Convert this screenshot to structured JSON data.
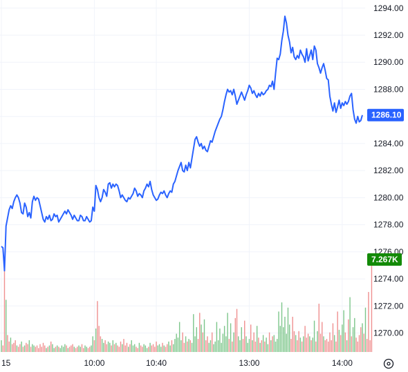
{
  "chart_data": {
    "type": "line",
    "instrument_chart": "intraday price line with volume histogram",
    "y_axis": {
      "side": "right",
      "ticks": [
        "1294.00",
        "1292.00",
        "1290.00",
        "1288.00",
        "1286.00",
        "1284.00",
        "1282.00",
        "1280.00",
        "1278.00",
        "1276.00",
        "1274.00",
        "1272.00",
        "1270.00"
      ],
      "tick_values": [
        1294,
        1292,
        1290,
        1288,
        1286,
        1284,
        1282,
        1280,
        1278,
        1276,
        1274,
        1272,
        1270
      ],
      "ylim": [
        1268.6,
        1294.6
      ]
    },
    "x_axis": {
      "ticks": [
        "15",
        "10:00",
        "10:40",
        "13:00",
        "14:00"
      ],
      "tick_positions": [
        0,
        60,
        100,
        160,
        220
      ]
    },
    "grid": true,
    "line_color": "#2962ff",
    "last_price": "1286.10",
    "last_price_color": "#2962ff",
    "volume_badge": "7.267K",
    "volume_badge_color": "#138a07",
    "volume_up_color": "#7cc58a",
    "volume_down_color": "#ef8f8f",
    "x": [
      0,
      1,
      2,
      3,
      4,
      5,
      6,
      7,
      8,
      9,
      10,
      11,
      12,
      13,
      14,
      15,
      16,
      17,
      18,
      19,
      20,
      21,
      22,
      23,
      24,
      25,
      26,
      27,
      28,
      29,
      30,
      31,
      32,
      33,
      34,
      35,
      36,
      37,
      38,
      39,
      40,
      41,
      42,
      43,
      44,
      45,
      46,
      47,
      48,
      49,
      50,
      51,
      52,
      53,
      54,
      55,
      56,
      57,
      58,
      59,
      60,
      61,
      62,
      63,
      64,
      65,
      66,
      67,
      68,
      69,
      70,
      71,
      72,
      73,
      74,
      75,
      76,
      77,
      78,
      79,
      80,
      81,
      82,
      83,
      84,
      85,
      86,
      87,
      88,
      89,
      90,
      91,
      92,
      93,
      94,
      95,
      96,
      97,
      98,
      99,
      100,
      101,
      102,
      103,
      104,
      105,
      106,
      107,
      108,
      109,
      110,
      111,
      112,
      113,
      114,
      115,
      116,
      117,
      118,
      119,
      120,
      121,
      122,
      123,
      124,
      125,
      126,
      127,
      128,
      129,
      130,
      131,
      132,
      133,
      134,
      135,
      136,
      137,
      138,
      139,
      140,
      141,
      142,
      143,
      144,
      145,
      146,
      147,
      148,
      149,
      150,
      151,
      152,
      153,
      154,
      155,
      156,
      157,
      158,
      159,
      160,
      161,
      162,
      163,
      164,
      165,
      166,
      167,
      168,
      169,
      170,
      171,
      172,
      173,
      174,
      175,
      176,
      177,
      178,
      179,
      180,
      181,
      182,
      183,
      184,
      185,
      186,
      187,
      188,
      189,
      190,
      191,
      192,
      193,
      194,
      195,
      196,
      197,
      198,
      199,
      200,
      201,
      202,
      203,
      204,
      205,
      206,
      207,
      208,
      209,
      210,
      211,
      212,
      213,
      214,
      215,
      216,
      217,
      218,
      219,
      220,
      221,
      222,
      223,
      224,
      225,
      226,
      227,
      228,
      229,
      230,
      231,
      232,
      233,
      234,
      235,
      236,
      237,
      238,
      239,
      240
    ],
    "prices": [
      1276.4,
      1276.3,
      1274.6,
      1277.9,
      1278.5,
      1279.1,
      1279.4,
      1279.2,
      1279.7,
      1280.0,
      1280.2,
      1280.0,
      1279.6,
      1278.9,
      1278.8,
      1279.6,
      1279.3,
      1278.6,
      1278.9,
      1278.5,
      1279.7,
      1280.1,
      1279.8,
      1280.0,
      1279.9,
      1279.4,
      1278.9,
      1278.4,
      1278.2,
      1278.6,
      1278.4,
      1278.7,
      1278.3,
      1278.4,
      1278.8,
      1278.6,
      1278.7,
      1278.2,
      1278.4,
      1278.6,
      1278.8,
      1279.0,
      1278.8,
      1279.1,
      1278.9,
      1278.7,
      1278.4,
      1278.7,
      1278.5,
      1278.3,
      1278.3,
      1278.7,
      1278.6,
      1278.3,
      1278.3,
      1278.6,
      1278.4,
      1278.2,
      1278.3,
      1279.3,
      1279.0,
      1280.9,
      1280.6,
      1280.0,
      1279.7,
      1280.0,
      1280.6,
      1280.4,
      1280.1,
      1281.0,
      1281.1,
      1280.7,
      1281.0,
      1280.8,
      1281.0,
      1280.9,
      1280.5,
      1280.0,
      1280.2,
      1280.0,
      1279.8,
      1279.7,
      1280.0,
      1279.9,
      1280.1,
      1280.3,
      1280.7,
      1280.5,
      1280.1,
      1280.3,
      1280.2,
      1280.0,
      1280.5,
      1280.7,
      1281.0,
      1280.8,
      1281.2,
      1280.6,
      1280.2,
      1280.0,
      1279.8,
      1279.9,
      1280.2,
      1280.4,
      1280.3,
      1280.5,
      1280.2,
      1280.0,
      1280.3,
      1280.5,
      1280.4,
      1281.0,
      1281.2,
      1281.6,
      1282.0,
      1282.3,
      1282.6,
      1282.0,
      1281.9,
      1282.4,
      1282.0,
      1282.6,
      1282.2,
      1282.9,
      1283.6,
      1284.3,
      1284.5,
      1284.1,
      1283.8,
      1284.0,
      1283.6,
      1283.8,
      1283.5,
      1283.4,
      1283.8,
      1284.2,
      1284.1,
      1284.5,
      1284.9,
      1285.2,
      1285.5,
      1285.8,
      1286.0,
      1286.5,
      1287.1,
      1287.6,
      1288.0,
      1287.8,
      1287.9,
      1287.6,
      1288.0,
      1287.5,
      1286.9,
      1287.2,
      1287.5,
      1287.8,
      1287.5,
      1287.2,
      1287.6,
      1287.9,
      1288.3,
      1288.1,
      1287.7,
      1287.9,
      1287.6,
      1287.4,
      1287.7,
      1287.5,
      1287.8,
      1287.6,
      1287.7,
      1287.9,
      1288.0,
      1288.3,
      1288.2,
      1288.6,
      1288.0,
      1289.2,
      1290.3,
      1290.2,
      1290.6,
      1291.6,
      1292.3,
      1293.4,
      1292.9,
      1292.0,
      1291.5,
      1290.7,
      1291.1,
      1290.4,
      1290.2,
      1290.5,
      1290.3,
      1290.9,
      1290.6,
      1290.4,
      1290.0,
      1291.0,
      1290.1,
      1290.5,
      1290.9,
      1290.2,
      1291.2,
      1290.9,
      1289.9,
      1289.6,
      1289.2,
      1289.6,
      1289.9,
      1289.4,
      1288.8,
      1288.7,
      1287.5,
      1286.9,
      1286.4,
      1287.0,
      1286.3,
      1286.7,
      1287.2,
      1286.6,
      1287.0,
      1286.8,
      1287.1,
      1286.9,
      1287.1,
      1287.5,
      1287.7,
      1286.5,
      1285.8,
      1285.5,
      1286.0,
      1285.6,
      1285.7,
      1286.1
    ],
    "volume_up": [
      1,
      0,
      0,
      1,
      0,
      0,
      1,
      0,
      0,
      0,
      1,
      0,
      0,
      1,
      0,
      1,
      0,
      0,
      1,
      0,
      1,
      1,
      0,
      0,
      0,
      0,
      0,
      0,
      0,
      1,
      0,
      1,
      0,
      1,
      1,
      0,
      1,
      0,
      1,
      1,
      1,
      1,
      0,
      1,
      0,
      0,
      0,
      1,
      0,
      0,
      1,
      1,
      0,
      0,
      1,
      1,
      0,
      0,
      1,
      1,
      0,
      1,
      0,
      0,
      0,
      1,
      1,
      0,
      0,
      1,
      1,
      0,
      1,
      0,
      1,
      0,
      0,
      0,
      1,
      0,
      0,
      0,
      1,
      0,
      1,
      1,
      1,
      0,
      0,
      1,
      0,
      0,
      1,
      1,
      1,
      0,
      1,
      0,
      0,
      0,
      0,
      1,
      1,
      1,
      0,
      1,
      0,
      0,
      1,
      1,
      0,
      1,
      1,
      1,
      1,
      1,
      1,
      0,
      0,
      1,
      0,
      1,
      0,
      1,
      1,
      1,
      1,
      0,
      0,
      1,
      0,
      1,
      0,
      0,
      1,
      1,
      0,
      1,
      1,
      1,
      1,
      1,
      1,
      1,
      1,
      1,
      1,
      0,
      1,
      0,
      1,
      0,
      0,
      1,
      1,
      1,
      0,
      0,
      1,
      1,
      1,
      0,
      1,
      0,
      0,
      1,
      0,
      1,
      0,
      1,
      0,
      1,
      1,
      0,
      1,
      0,
      1,
      1,
      1,
      1,
      1,
      1,
      1,
      1,
      1,
      1,
      1,
      0,
      0,
      0,
      1,
      0,
      0,
      1,
      0,
      1,
      0,
      0,
      0,
      1,
      0,
      1,
      1,
      0,
      1,
      0,
      0,
      0,
      1,
      0,
      0,
      0,
      0,
      0,
      0,
      1,
      0,
      0,
      1,
      0,
      1,
      1,
      0,
      1,
      0,
      1,
      0,
      1,
      1,
      0,
      0,
      0,
      0,
      1,
      0,
      1
    ],
    "volume_k": [
      0.9,
      0.5,
      7.2,
      4.0,
      1.3,
      0.8,
      1.1,
      0.6,
      0.7,
      0.9,
      0.5,
      0.4,
      0.6,
      0.8,
      0.4,
      0.5,
      0.7,
      0.6,
      0.9,
      0.4,
      0.6,
      0.5,
      0.4,
      0.5,
      0.3,
      0.6,
      0.4,
      0.7,
      0.5,
      0.3,
      0.4,
      0.5,
      0.8,
      0.6,
      0.3,
      0.4,
      0.5,
      0.4,
      0.3,
      0.5,
      0.4,
      0.6,
      0.5,
      0.3,
      0.4,
      0.5,
      0.6,
      0.4,
      0.3,
      0.4,
      0.5,
      0.4,
      0.6,
      0.3,
      0.5,
      0.4,
      0.3,
      0.4,
      0.5,
      1.2,
      0.9,
      1.8,
      3.9,
      2.0,
      1.2,
      1.0,
      0.7,
      0.9,
      0.6,
      0.8,
      0.7,
      0.5,
      0.9,
      0.6,
      0.7,
      0.5,
      0.4,
      0.8,
      0.6,
      1.0,
      0.5,
      0.7,
      0.4,
      0.6,
      0.9,
      0.5,
      0.6,
      0.4,
      0.3,
      0.7,
      0.5,
      0.4,
      0.6,
      0.5,
      0.3,
      0.4,
      0.7,
      0.5,
      0.6,
      0.4,
      0.8,
      0.5,
      0.6,
      0.4,
      0.7,
      0.5,
      0.4,
      0.6,
      0.8,
      0.5,
      0.9,
      0.6,
      1.0,
      1.4,
      1.1,
      2.3,
      0.9,
      1.5,
      0.7,
      1.2,
      0.8,
      1.0,
      0.9,
      0.7,
      2.9,
      1.2,
      1.9,
      1.0,
      3.0,
      2.1,
      1.5,
      2.5,
      0.9,
      1.2,
      0.7,
      0.9,
      1.5,
      0.6,
      0.8,
      2.3,
      0.9,
      1.8,
      0.7,
      1.4,
      2.0,
      1.2,
      3.0,
      1.0,
      2.2,
      0.8,
      1.5,
      2.6,
      3.3,
      1.2,
      0.9,
      1.9,
      1.0,
      2.4,
      1.2,
      0.7,
      1.0,
      2.1,
      0.9,
      1.5,
      0.8,
      2.0,
      1.1,
      0.7,
      0.9,
      1.3,
      0.8,
      1.1,
      0.6,
      1.5,
      0.9,
      1.2,
      1.3,
      0.8,
      1.0,
      3.1,
      2.0,
      3.8,
      1.9,
      2.7,
      1.4,
      3.4,
      2.1,
      1.0,
      2.7,
      1.6,
      1.3,
      0.9,
      1.6,
      1.1,
      0.8,
      1.2,
      2.0,
      1.1,
      1.4,
      1.2,
      0.9,
      1.1,
      2.4,
      0.8,
      1.6,
      3.7,
      1.4,
      2.3,
      1.2,
      0.9,
      1.0,
      0.8,
      1.5,
      0.9,
      2.2,
      1.3,
      0.8,
      3.1,
      1.7,
      1.3,
      2.1,
      3.2,
      1.5,
      0.9,
      2.5,
      4.2,
      1.2,
      1.9,
      2.6,
      1.1,
      0.8,
      1.3,
      1.9,
      2.2,
      1.4,
      3.4,
      1.0,
      4.6,
      0.9,
      7.3
    ]
  },
  "labels": {
    "price_badge": "1286.10",
    "volume_badge": "7.267K"
  },
  "icons": {
    "settings": "gear-icon"
  }
}
